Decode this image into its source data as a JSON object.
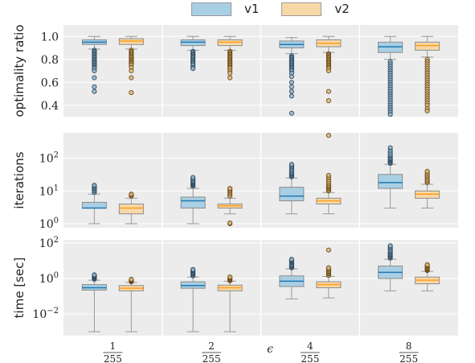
{
  "legend": [
    {
      "label": "v1",
      "color": "#a9cfe4"
    },
    {
      "label": "v2",
      "color": "#f7d9a8"
    }
  ],
  "xlabel": "ϵ",
  "categories": [
    {
      "num": "1",
      "den": "255"
    },
    {
      "num": "2",
      "den": "255"
    },
    {
      "num": "4",
      "den": "255"
    },
    {
      "num": "8",
      "den": "255"
    }
  ],
  "styles": {
    "panel_bg": "#ececec",
    "grid": "#ffffff",
    "v1_fill": "#a9cfe4",
    "v2_fill": "#f7d9a8",
    "v1_median": "#1f77b4",
    "v2_median": "#ff9b1a",
    "whisker": "#9a9a9a"
  },
  "chart_data": [
    {
      "type": "box",
      "ylabel": "optimality ratio",
      "yscale": "linear",
      "ylim": [
        0.3,
        1.1
      ],
      "yticks": [
        0.4,
        0.6,
        0.8,
        1.0
      ],
      "ytick_labels": [
        "0.4",
        "0.6",
        "0.8",
        "1.0"
      ],
      "series": [
        {
          "name": "v1",
          "boxes": [
            {
              "whislo": 0.89,
              "q1": 0.93,
              "med": 0.95,
              "q3": 0.97,
              "whishi": 1.0,
              "fliers": [
                0.88,
                0.87,
                0.86,
                0.85,
                0.84,
                0.83,
                0.82,
                0.81,
                0.8,
                0.79,
                0.78,
                0.77,
                0.76,
                0.75,
                0.74,
                0.73,
                0.72,
                0.7,
                0.64,
                0.56,
                0.52
              ]
            },
            {
              "whislo": 0.88,
              "q1": 0.92,
              "med": 0.95,
              "q3": 0.97,
              "whishi": 1.0,
              "fliers": [
                0.87,
                0.86,
                0.85,
                0.84,
                0.83,
                0.82,
                0.81,
                0.8,
                0.79,
                0.78,
                0.77,
                0.76,
                0.75,
                0.73,
                0.72
              ]
            },
            {
              "whislo": 0.85,
              "q1": 0.9,
              "med": 0.93,
              "q3": 0.96,
              "whishi": 0.99,
              "fliers": [
                0.83,
                0.82,
                0.81,
                0.8,
                0.79,
                0.78,
                0.77,
                0.76,
                0.75,
                0.74,
                0.73,
                0.72,
                0.71,
                0.7,
                0.68,
                0.65,
                0.6,
                0.56,
                0.52,
                0.48,
                0.33
              ]
            },
            {
              "whislo": 0.8,
              "q1": 0.86,
              "med": 0.91,
              "q3": 0.95,
              "whishi": 1.0,
              "fliers": [
                0.78,
                0.76,
                0.74,
                0.72,
                0.7,
                0.68,
                0.66,
                0.64,
                0.62,
                0.6,
                0.58,
                0.56,
                0.54,
                0.52,
                0.5,
                0.48,
                0.46,
                0.44,
                0.42,
                0.4,
                0.38,
                0.36,
                0.34,
                0.32
              ]
            }
          ]
        },
        {
          "name": "v2",
          "boxes": [
            {
              "whislo": 0.89,
              "q1": 0.93,
              "med": 0.96,
              "q3": 0.98,
              "whishi": 1.0,
              "fliers": [
                0.88,
                0.87,
                0.86,
                0.85,
                0.84,
                0.83,
                0.82,
                0.81,
                0.8,
                0.79,
                0.78,
                0.77,
                0.76,
                0.75,
                0.73,
                0.7,
                0.64,
                0.51
              ]
            },
            {
              "whislo": 0.88,
              "q1": 0.92,
              "med": 0.95,
              "q3": 0.97,
              "whishi": 1.0,
              "fliers": [
                0.87,
                0.86,
                0.85,
                0.84,
                0.83,
                0.82,
                0.81,
                0.8,
                0.79,
                0.78,
                0.77,
                0.76,
                0.75,
                0.74,
                0.73,
                0.72,
                0.7,
                0.68,
                0.64
              ]
            },
            {
              "whislo": 0.86,
              "q1": 0.91,
              "med": 0.94,
              "q3": 0.97,
              "whishi": 1.0,
              "fliers": [
                0.85,
                0.84,
                0.83,
                0.82,
                0.81,
                0.8,
                0.79,
                0.78,
                0.77,
                0.76,
                0.75,
                0.74,
                0.73,
                0.72,
                0.7,
                0.52,
                0.44
              ]
            },
            {
              "whislo": 0.82,
              "q1": 0.88,
              "med": 0.92,
              "q3": 0.95,
              "whishi": 1.0,
              "fliers": [
                0.8,
                0.78,
                0.76,
                0.74,
                0.72,
                0.7,
                0.68,
                0.66,
                0.64,
                0.62,
                0.6,
                0.58,
                0.56,
                0.54,
                0.52,
                0.5,
                0.48,
                0.46,
                0.44,
                0.42,
                0.4,
                0.37,
                0.35
              ]
            }
          ]
        }
      ]
    },
    {
      "type": "box",
      "ylabel": "iterations",
      "yscale": "log",
      "ylim": [
        0.75,
        600
      ],
      "yticks": [
        1,
        10,
        100
      ],
      "ytick_labels": [
        "10^0",
        "10^1",
        "10^2"
      ],
      "series": [
        {
          "name": "v1",
          "boxes": [
            {
              "whislo": 1,
              "q1": 3,
              "med": 3,
              "q3": 4.5,
              "whishi": 8,
              "fliers": [
                9,
                10,
                11,
                12,
                13,
                14,
                15
              ]
            },
            {
              "whislo": 1,
              "q1": 3,
              "med": 5,
              "q3": 6.5,
              "whishi": 12,
              "fliers": [
                14,
                15,
                16,
                17,
                18,
                19,
                20,
                22,
                24,
                26
              ]
            },
            {
              "whislo": 2,
              "q1": 5,
              "med": 7,
              "q3": 13,
              "whishi": 25,
              "fliers": [
                27,
                29,
                31,
                33,
                35,
                38,
                41,
                45,
                50,
                55,
                60,
                65
              ]
            },
            {
              "whislo": 3,
              "q1": 12,
              "med": 18,
              "q3": 32,
              "whishi": 65,
              "fliers": [
                70,
                75,
                80,
                85,
                90,
                95,
                100,
                110,
                120,
                130,
                150,
                175,
                210
              ]
            }
          ]
        },
        {
          "name": "v2",
          "boxes": [
            {
              "whislo": 1,
              "q1": 2,
              "med": 3,
              "q3": 4,
              "whishi": 6,
              "fliers": [
                7,
                7.5,
                8
              ]
            },
            {
              "whislo": 2,
              "q1": 3,
              "med": 3.5,
              "q3": 4,
              "whishi": 6,
              "fliers": [
                1,
                1.05,
                7,
                8,
                9,
                10,
                11,
                12
              ]
            },
            {
              "whislo": 2,
              "q1": 4,
              "med": 5,
              "q3": 6,
              "whishi": 9,
              "fliers": [
                10,
                11,
                12,
                13,
                14,
                15,
                17,
                19,
                22,
                26,
                30,
                500
              ]
            },
            {
              "whislo": 3,
              "q1": 6,
              "med": 8,
              "q3": 10,
              "whishi": 16,
              "fliers": [
                18,
                20,
                22,
                25,
                28,
                31,
                35,
                40
              ]
            }
          ]
        }
      ]
    },
    {
      "type": "box",
      "ylabel": "time [sec]",
      "yscale": "log",
      "ylim": [
        0.0006,
        150
      ],
      "yticks": [
        0.01,
        1,
        100
      ],
      "ytick_labels": [
        "10^-2",
        "10^0",
        "10^2"
      ],
      "series": [
        {
          "name": "v1",
          "boxes": [
            {
              "whislo": 0.001,
              "q1": 0.22,
              "med": 0.3,
              "q3": 0.45,
              "whishi": 0.8,
              "fliers": [
                0.9,
                1.0,
                1.1,
                1.2,
                1.3,
                1.4,
                1.5,
                1.6
              ]
            },
            {
              "whislo": 0.001,
              "q1": 0.28,
              "med": 0.4,
              "q3": 0.65,
              "whishi": 1.2,
              "fliers": [
                1.4,
                1.6,
                1.8,
                2.0,
                2.2,
                2.5,
                2.8,
                3.0,
                3.2
              ]
            },
            {
              "whislo": 0.07,
              "q1": 0.35,
              "med": 0.7,
              "q3": 1.4,
              "whishi": 3.5,
              "fliers": [
                4,
                4.5,
                5,
                5.5,
                6,
                7,
                8,
                9,
                10,
                11,
                12
              ]
            },
            {
              "whislo": 0.2,
              "q1": 1.0,
              "med": 2.2,
              "q3": 5.0,
              "whishi": 12,
              "fliers": [
                14,
                16,
                18,
                20,
                23,
                26,
                30,
                35,
                40,
                50,
                60,
                70
              ]
            }
          ]
        },
        {
          "name": "v2",
          "boxes": [
            {
              "whislo": 0.001,
              "q1": 0.2,
              "med": 0.28,
              "q3": 0.4,
              "whishi": 0.6,
              "fliers": [
                0.65,
                0.7,
                0.75,
                0.8,
                0.85,
                0.9
              ]
            },
            {
              "whislo": 0.001,
              "q1": 0.2,
              "med": 0.3,
              "q3": 0.42,
              "whishi": 0.7,
              "fliers": [
                0.75,
                0.8,
                0.85,
                0.9,
                1.0,
                1.1,
                1.2
              ]
            },
            {
              "whislo": 0.08,
              "q1": 0.3,
              "med": 0.45,
              "q3": 0.65,
              "whishi": 1.3,
              "fliers": [
                1.5,
                1.8,
                2,
                2.3,
                2.6,
                3,
                3.5,
                4,
                40
              ]
            },
            {
              "whislo": 0.2,
              "q1": 0.5,
              "med": 0.8,
              "q3": 1.2,
              "whishi": 2.5,
              "fliers": [
                2.8,
                3,
                3.3,
                3.6,
                4,
                4.5,
                5,
                5.5,
                6
              ]
            }
          ]
        }
      ]
    }
  ]
}
